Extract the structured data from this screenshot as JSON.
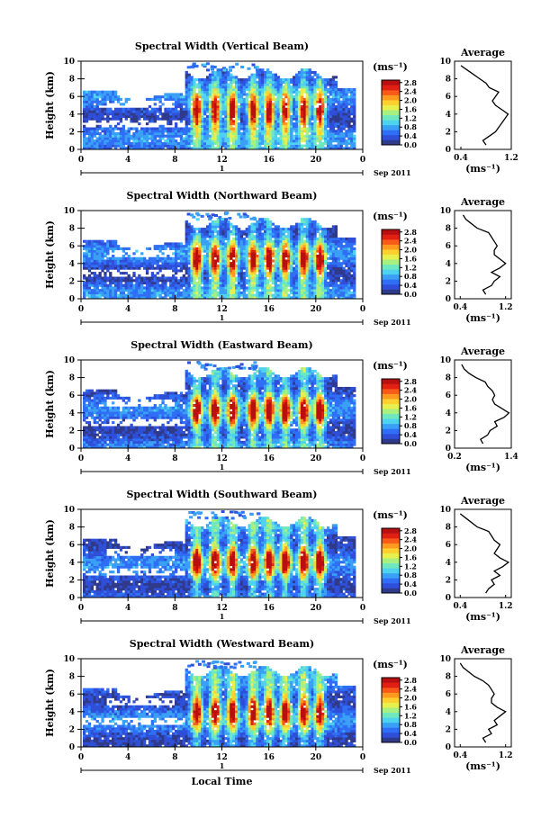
{
  "figure": {
    "xlabel": "Local Time",
    "date_label": "Sep 2011",
    "day_marker": "1",
    "unit": "(ms⁻¹)",
    "avg_xlabel": "(ms⁻¹)",
    "avg_title": "Average"
  },
  "colorbar": {
    "ticks": [
      "0.0",
      "0.4",
      "0.8",
      "1.2",
      "1.6",
      "2.0",
      "2.4",
      "2.8"
    ],
    "colors": [
      "#303a8a",
      "#2f4fd8",
      "#2f6ff5",
      "#3aa0f5",
      "#4fd2f0",
      "#6fe8c0",
      "#a8f080",
      "#e8f050",
      "#ffd030",
      "#ff9a20",
      "#f85a18",
      "#e02010",
      "#b81010"
    ]
  },
  "chart_data": [
    {
      "type": "heatmap",
      "title": "Spectral Width (Vertical Beam)",
      "ylabel": "Height (km)",
      "xlabel": "",
      "xlim": [
        0,
        24
      ],
      "ylim": [
        0,
        10
      ],
      "xticks": [
        "0",
        "4",
        "8",
        "12",
        "16",
        "20",
        "0"
      ],
      "yticks": [
        "0",
        "2",
        "4",
        "6",
        "8",
        "10"
      ],
      "colorbar_range": [
        0.0,
        2.8
      ],
      "average_profile": {
        "title": "Average",
        "xlim": [
          0.3,
          1.2
        ],
        "xticks": [
          "0.4",
          "1.2"
        ],
        "ylim": [
          0,
          10
        ],
        "yticks": [
          "0",
          "2",
          "4",
          "6",
          "8",
          "10"
        ],
        "height": [
          0.5,
          1.0,
          1.5,
          2.0,
          2.5,
          3.0,
          3.5,
          4.0,
          4.5,
          5.0,
          5.5,
          6.0,
          6.5,
          7.0,
          7.5,
          8.0,
          8.5,
          9.0,
          9.5
        ],
        "value": [
          0.8,
          0.75,
          0.85,
          0.95,
          1.0,
          1.05,
          1.1,
          1.15,
          1.05,
          0.95,
          0.9,
          0.95,
          1.0,
          0.85,
          0.8,
          0.7,
          0.6,
          0.5,
          0.4
        ]
      }
    },
    {
      "type": "heatmap",
      "title": "Spectral Width (Northward Beam)",
      "ylabel": "Height (km)",
      "xlabel": "",
      "xlim": [
        0,
        24
      ],
      "ylim": [
        0,
        10
      ],
      "xticks": [
        "0",
        "4",
        "8",
        "12",
        "16",
        "20",
        "0"
      ],
      "yticks": [
        "0",
        "2",
        "4",
        "6",
        "8",
        "10"
      ],
      "colorbar_range": [
        0.0,
        2.8
      ],
      "average_profile": {
        "title": "Average",
        "xlim": [
          0.3,
          1.3
        ],
        "xticks": [
          "0.4",
          "1.2"
        ],
        "ylim": [
          0,
          10
        ],
        "yticks": [
          "0",
          "2",
          "4",
          "6",
          "8",
          "10"
        ],
        "height": [
          0.5,
          1.0,
          1.5,
          2.0,
          2.5,
          3.0,
          3.5,
          4.0,
          4.5,
          5.0,
          5.5,
          6.0,
          6.5,
          7.0,
          7.5,
          8.0,
          8.5,
          9.0,
          9.5
        ],
        "value": [
          0.85,
          0.8,
          0.95,
          1.0,
          1.1,
          0.95,
          1.1,
          1.2,
          1.1,
          1.0,
          1.0,
          1.05,
          1.0,
          0.95,
          0.9,
          0.7,
          0.6,
          0.5,
          0.45
        ]
      }
    },
    {
      "type": "heatmap",
      "title": "Spectral Width (Eastward Beam)",
      "ylabel": "Height (km)",
      "xlabel": "",
      "xlim": [
        0,
        24
      ],
      "ylim": [
        0,
        10
      ],
      "xticks": [
        "0",
        "4",
        "8",
        "12",
        "16",
        "20",
        "0"
      ],
      "yticks": [
        "0",
        "2",
        "4",
        "6",
        "8",
        "10"
      ],
      "colorbar_range": [
        0.0,
        2.8
      ],
      "average_profile": {
        "title": "Average",
        "xlim": [
          0.2,
          1.4
        ],
        "xticks": [
          "0.2",
          "1.4"
        ],
        "ylim": [
          0,
          10
        ],
        "yticks": [
          "0",
          "2",
          "4",
          "6",
          "8",
          "10"
        ],
        "height": [
          0.5,
          1.0,
          1.5,
          2.0,
          2.5,
          3.0,
          3.5,
          4.0,
          4.5,
          5.0,
          5.5,
          6.0,
          6.5,
          7.0,
          7.5,
          8.0,
          8.5,
          9.0,
          9.5
        ],
        "value": [
          0.8,
          0.75,
          0.9,
          0.95,
          1.1,
          1.05,
          1.25,
          1.35,
          1.2,
          1.05,
          1.0,
          1.05,
          1.0,
          0.9,
          0.85,
          0.65,
          0.5,
          0.4,
          0.35
        ]
      }
    },
    {
      "type": "heatmap",
      "title": "Spectral Width (Southward Beam)",
      "ylabel": "Height (km)",
      "xlabel": "",
      "xlim": [
        0,
        24
      ],
      "ylim": [
        0,
        10
      ],
      "xticks": [
        "0",
        "4",
        "8",
        "12",
        "16",
        "20",
        "0"
      ],
      "yticks": [
        "0",
        "2",
        "4",
        "6",
        "8",
        "10"
      ],
      "colorbar_range": [
        0.0,
        2.8
      ],
      "average_profile": {
        "title": "Average",
        "xlim": [
          0.3,
          1.3
        ],
        "xticks": [
          "0.4",
          "1.2"
        ],
        "ylim": [
          0,
          10
        ],
        "yticks": [
          "0",
          "2",
          "4",
          "6",
          "8",
          "10"
        ],
        "height": [
          0.5,
          1.0,
          1.5,
          2.0,
          2.5,
          3.0,
          3.5,
          4.0,
          4.5,
          5.0,
          5.5,
          6.0,
          6.5,
          7.0,
          7.5,
          8.0,
          8.5,
          9.0,
          9.5
        ],
        "value": [
          0.85,
          0.9,
          1.0,
          0.95,
          1.1,
          1.0,
          1.15,
          1.25,
          1.1,
          1.0,
          1.05,
          1.1,
          1.0,
          0.95,
          0.9,
          0.7,
          0.6,
          0.5,
          0.4
        ]
      }
    },
    {
      "type": "heatmap",
      "title": "Spectral Width (Westward Beam)",
      "ylabel": "Height (km)",
      "xlabel": "Local Time",
      "xlim": [
        0,
        24
      ],
      "ylim": [
        0,
        10
      ],
      "xticks": [
        "0",
        "4",
        "8",
        "12",
        "16",
        "20",
        "0"
      ],
      "yticks": [
        "0",
        "2",
        "4",
        "6",
        "8",
        "10"
      ],
      "colorbar_range": [
        0.0,
        2.8
      ],
      "average_profile": {
        "title": "Average",
        "xlim": [
          0.3,
          1.3
        ],
        "xticks": [
          "0.4",
          "1.2"
        ],
        "ylim": [
          0,
          10
        ],
        "yticks": [
          "0",
          "2",
          "4",
          "6",
          "8",
          "10"
        ],
        "height": [
          0.5,
          1.0,
          1.5,
          2.0,
          2.5,
          3.0,
          3.5,
          4.0,
          4.5,
          5.0,
          5.5,
          6.0,
          6.5,
          7.0,
          7.5,
          8.0,
          8.5,
          9.0,
          9.5
        ],
        "value": [
          0.85,
          0.8,
          0.95,
          0.9,
          1.05,
          1.0,
          1.1,
          1.2,
          1.05,
          0.95,
          0.95,
          1.0,
          0.95,
          0.9,
          0.8,
          0.65,
          0.55,
          0.45,
          0.4
        ]
      }
    }
  ]
}
